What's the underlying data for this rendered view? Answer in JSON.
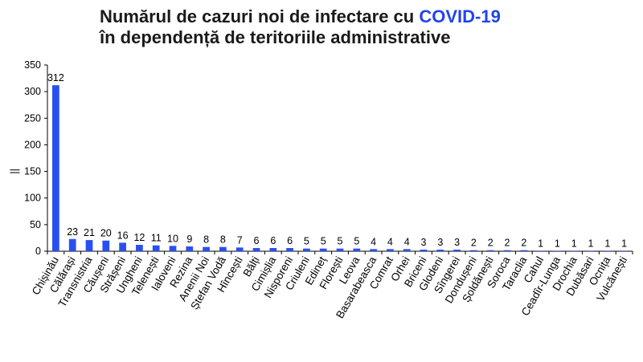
{
  "chart_data": {
    "type": "bar",
    "title_part1": "Numărul de cazuri noi de infectare cu ",
    "title_highlight": "COVID-19",
    "title_line2": "în dependență de teritoriile administrative",
    "xlabel": "",
    "ylabel": "||",
    "ylim": [
      0,
      350
    ],
    "yticks": [
      0,
      50,
      100,
      150,
      200,
      250,
      300,
      350
    ],
    "bar_color": "#2a4ff0",
    "title_accent_color": "#2244ee",
    "categories": [
      "Chișinău",
      "Călărași",
      "Transnistria",
      "Căușeni",
      "Strășeni",
      "Ungheni",
      "Telenești",
      "Ialoveni",
      "Rezina",
      "Anenii Noi",
      "Ștefan Vodă",
      "Hîncești",
      "Bălți",
      "Cimișlia",
      "Nisporeni",
      "Criuleni",
      "Edineț",
      "Florești",
      "Leova",
      "Basarabeasca",
      "Comrat",
      "Orhei",
      "Briceni",
      "Glodeni",
      "Sîngerei",
      "Dondușeni",
      "Șoldănești",
      "Soroca",
      "Taraclia",
      "Cahul",
      "Ceadîr-Lunga",
      "Drochia",
      "Dubăsari",
      "Ocnița",
      "Vulcănești"
    ],
    "values": [
      312,
      23,
      21,
      20,
      16,
      12,
      11,
      10,
      9,
      8,
      8,
      7,
      6,
      6,
      6,
      5,
      5,
      5,
      5,
      4,
      4,
      4,
      3,
      3,
      3,
      2,
      2,
      2,
      2,
      1,
      1,
      1,
      1,
      1,
      1
    ]
  }
}
